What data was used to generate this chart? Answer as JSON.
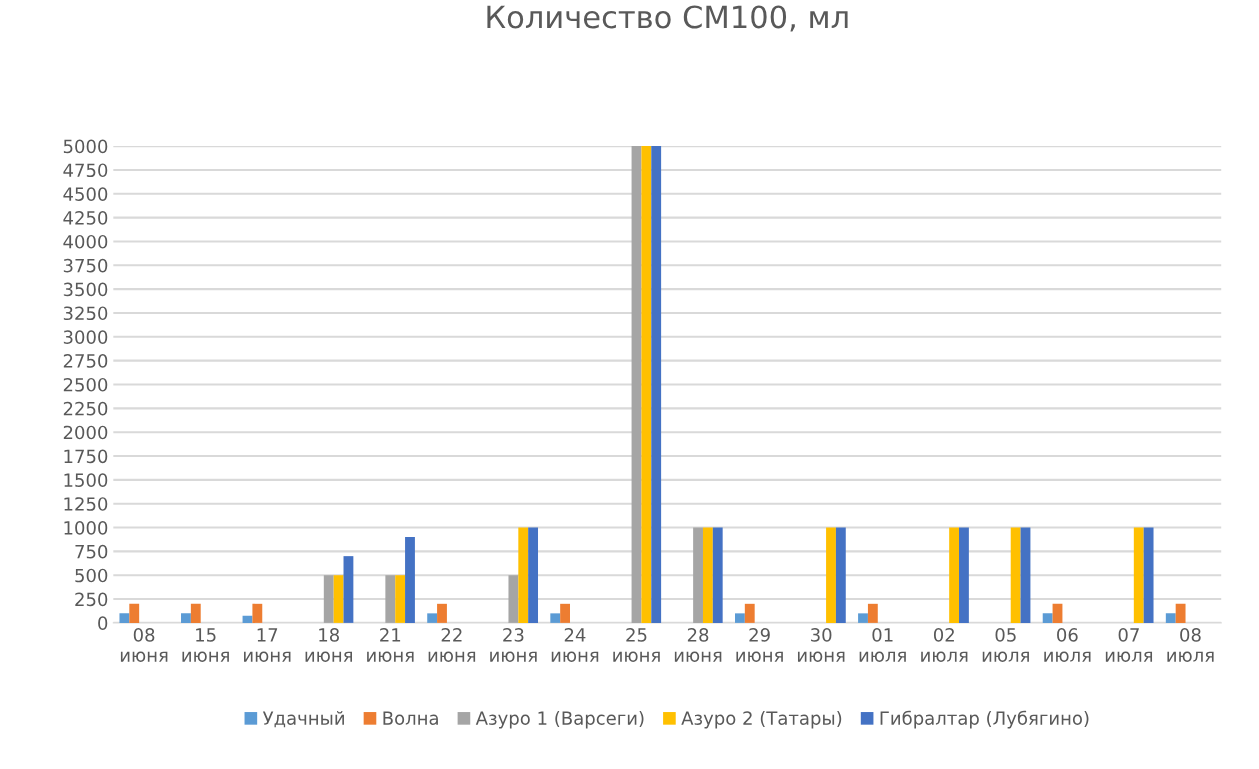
{
  "chart_data": {
    "type": "bar",
    "title": "Количество СМ100, мл",
    "categories": [
      "08\nиюня",
      "15\nиюня",
      "17\nиюня",
      "18\nиюня",
      "21\nиюня",
      "22\nиюня",
      "23\nиюня",
      "24\nиюня",
      "25\nиюня",
      "28\nиюня",
      "29\nиюня",
      "30\nиюня",
      "01\nиюля",
      "02\nиюля",
      "05\nиюля",
      "06\nиюля",
      "07\nиюля",
      "08\nиюля"
    ],
    "series": [
      {
        "name": "Удачный",
        "color": "#5b9bd5",
        "values": [
          100,
          100,
          75,
          0,
          0,
          100,
          0,
          100,
          0,
          0,
          100,
          0,
          100,
          0,
          0,
          100,
          0,
          100
        ]
      },
      {
        "name": "Волна",
        "color": "#ed7d31",
        "values": [
          200,
          200,
          200,
          0,
          0,
          200,
          0,
          200,
          0,
          0,
          200,
          0,
          200,
          0,
          0,
          200,
          0,
          200
        ]
      },
      {
        "name": "Азуро 1 (Варсеги)",
        "color": "#a5a5a5",
        "values": [
          0,
          0,
          0,
          500,
          500,
          0,
          500,
          0,
          5000,
          1000,
          0,
          0,
          0,
          0,
          0,
          0,
          0,
          0
        ]
      },
      {
        "name": "Азуро 2 (Татары)",
        "color": "#ffc000",
        "values": [
          0,
          0,
          0,
          500,
          500,
          0,
          1000,
          0,
          5000,
          1000,
          0,
          1000,
          0,
          1000,
          1000,
          0,
          1000,
          0
        ]
      },
      {
        "name": "Гибралтар (Лубягино)",
        "color": "#4472c4",
        "values": [
          0,
          0,
          0,
          700,
          900,
          0,
          1000,
          0,
          5000,
          1000,
          0,
          1000,
          0,
          1000,
          1000,
          0,
          1000,
          0
        ]
      }
    ],
    "ylim": [
      0,
      5000
    ],
    "yticks": [
      0,
      250,
      500,
      750,
      1000,
      1250,
      1500,
      1750,
      2000,
      2250,
      2500,
      2750,
      3000,
      3250,
      3500,
      3750,
      4000,
      4250,
      4500,
      4750,
      5000
    ],
    "grid": "y",
    "legend": "bottom"
  }
}
